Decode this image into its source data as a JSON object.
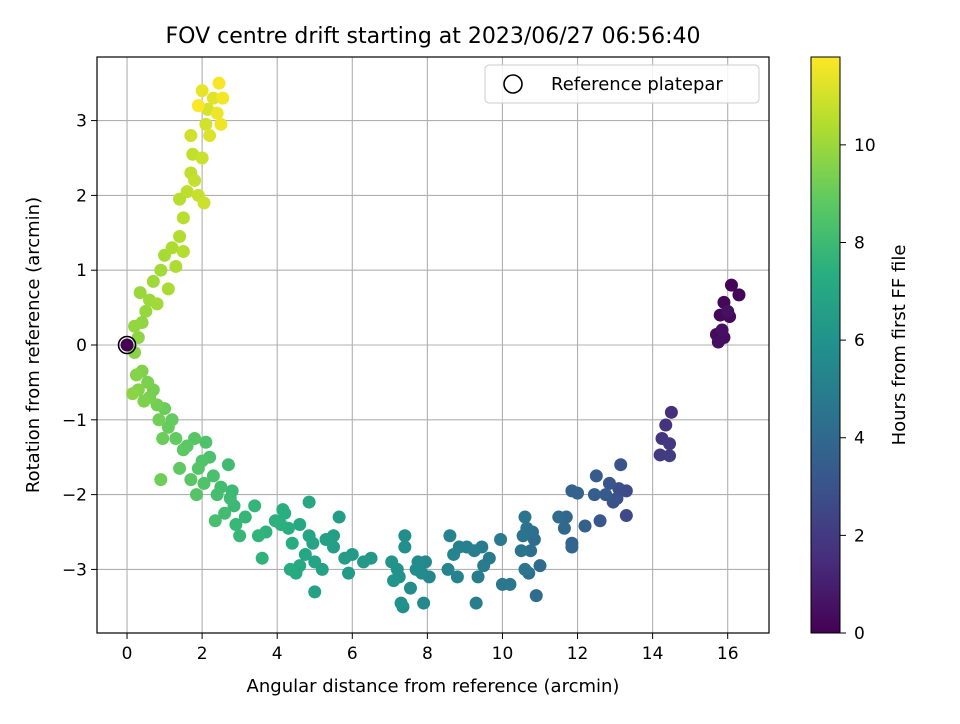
{
  "chart_data": {
    "type": "scatter",
    "title": "FOV centre drift starting at 2023/06/27 06:56:40",
    "xlabel": "Angular distance from reference (arcmin)",
    "ylabel": "Rotation from reference (arcmin)",
    "xlim": [
      -0.8,
      17.1
    ],
    "ylim": [
      -3.85,
      3.85
    ],
    "x_ticks": [
      0,
      2,
      4,
      6,
      8,
      10,
      12,
      14,
      16
    ],
    "y_ticks": [
      -3,
      -2,
      -1,
      0,
      1,
      2,
      3
    ],
    "x_tick_labels": [
      "0",
      "2",
      "4",
      "6",
      "8",
      "10",
      "12",
      "14",
      "16"
    ],
    "y_tick_labels": [
      "−3",
      "−2",
      "−1",
      "0",
      "1",
      "2",
      "3"
    ],
    "grid": true,
    "legend": {
      "location": "upper-right",
      "entries": [
        "Reference platepar"
      ]
    },
    "colorbar": {
      "label": "Hours from first FF file",
      "colormap": "viridis",
      "range": [
        0,
        11.8
      ],
      "ticks": [
        0,
        2,
        4,
        6,
        8,
        10
      ],
      "tick_labels": [
        "0",
        "2",
        "4",
        "6",
        "8",
        "10"
      ]
    },
    "reference_point": {
      "x": 0,
      "y": 0,
      "label": "Reference platepar"
    },
    "points_note_keys": [
      "x",
      "y",
      "hours"
    ],
    "points": [
      [
        16.1,
        0.8,
        0.1
      ],
      [
        16.3,
        0.67,
        0.15
      ],
      [
        15.9,
        0.57,
        0.2
      ],
      [
        15.8,
        0.4,
        0.25
      ],
      [
        16.05,
        0.38,
        0.3
      ],
      [
        15.7,
        0.14,
        0.35
      ],
      [
        15.9,
        0.1,
        0.4
      ],
      [
        15.75,
        0.04,
        0.45
      ],
      [
        15.85,
        0.2,
        0.5
      ],
      [
        16.0,
        0.45,
        0.55
      ],
      [
        14.5,
        -0.9,
        1.6
      ],
      [
        14.35,
        -1.07,
        1.7
      ],
      [
        14.25,
        -1.25,
        1.8
      ],
      [
        14.45,
        -1.32,
        1.9
      ],
      [
        14.2,
        -1.47,
        2.0
      ],
      [
        14.45,
        -1.48,
        2.1
      ],
      [
        13.3,
        -2.28,
        2.6
      ],
      [
        13.3,
        -1.95,
        2.7
      ],
      [
        13.1,
        -1.92,
        2.8
      ],
      [
        13.05,
        -2.05,
        2.9
      ],
      [
        13.15,
        -1.6,
        3.0
      ],
      [
        12.95,
        -2.1,
        3.05
      ],
      [
        12.85,
        -1.85,
        3.1
      ],
      [
        12.6,
        -2.35,
        3.2
      ],
      [
        12.75,
        -2.0,
        3.3
      ],
      [
        12.5,
        -1.75,
        3.4
      ],
      [
        12.45,
        -2.0,
        3.5
      ],
      [
        12.2,
        -2.42,
        3.6
      ],
      [
        12.0,
        -1.98,
        3.7
      ],
      [
        11.85,
        -1.95,
        3.75
      ],
      [
        11.85,
        -2.65,
        3.8
      ],
      [
        11.85,
        -2.7,
        3.85
      ],
      [
        11.7,
        -2.3,
        3.9
      ],
      [
        11.65,
        -2.45,
        4.0
      ],
      [
        11.5,
        -2.3,
        4.05
      ],
      [
        11.0,
        -2.95,
        4.1
      ],
      [
        10.9,
        -3.35,
        4.15
      ],
      [
        10.85,
        -2.6,
        4.2
      ],
      [
        10.8,
        -2.5,
        4.25
      ],
      [
        10.75,
        -2.75,
        4.3
      ],
      [
        10.7,
        -3.05,
        4.35
      ],
      [
        10.65,
        -2.45,
        4.4
      ],
      [
        10.55,
        -2.55,
        4.45
      ],
      [
        10.5,
        -2.75,
        4.5
      ],
      [
        10.6,
        -2.3,
        4.55
      ],
      [
        10.6,
        -3.0,
        4.6
      ],
      [
        10.2,
        -3.2,
        4.65
      ],
      [
        10.0,
        -3.2,
        4.7
      ],
      [
        9.95,
        -2.6,
        4.75
      ],
      [
        9.65,
        -2.85,
        4.8
      ],
      [
        9.5,
        -2.95,
        4.85
      ],
      [
        9.45,
        -2.7,
        4.9
      ],
      [
        9.35,
        -3.1,
        4.95
      ],
      [
        9.3,
        -3.45,
        5.0
      ],
      [
        9.25,
        -2.75,
        5.05
      ],
      [
        9.05,
        -2.7,
        5.1
      ],
      [
        8.85,
        -2.7,
        5.15
      ],
      [
        8.8,
        -3.1,
        5.2
      ],
      [
        8.6,
        -2.55,
        5.25
      ],
      [
        8.55,
        -3.0,
        5.3
      ],
      [
        8.7,
        -2.8,
        5.35
      ],
      [
        8.05,
        -3.1,
        5.4
      ],
      [
        7.95,
        -2.9,
        5.45
      ],
      [
        7.9,
        -3.45,
        5.5
      ],
      [
        7.85,
        -3.05,
        5.55
      ],
      [
        7.75,
        -2.9,
        5.6
      ],
      [
        7.7,
        -3.0,
        5.65
      ],
      [
        7.55,
        -3.25,
        5.7
      ],
      [
        7.4,
        -2.55,
        5.75
      ],
      [
        7.4,
        -2.7,
        5.8
      ],
      [
        7.35,
        -3.5,
        5.85
      ],
      [
        7.3,
        -3.45,
        5.9
      ],
      [
        7.25,
        -3.1,
        5.95
      ],
      [
        7.2,
        -3.0,
        6.0
      ],
      [
        7.05,
        -2.9,
        6.05
      ],
      [
        7.1,
        -3.15,
        6.1
      ],
      [
        6.5,
        -2.85,
        6.25
      ],
      [
        6.3,
        -2.9,
        6.3
      ],
      [
        6.0,
        -2.8,
        6.35
      ],
      [
        5.9,
        -3.05,
        6.4
      ],
      [
        5.8,
        -2.85,
        6.45
      ],
      [
        5.65,
        -2.3,
        6.5
      ],
      [
        5.5,
        -2.7,
        6.55
      ],
      [
        5.5,
        -2.55,
        6.6
      ],
      [
        5.3,
        -2.6,
        6.65
      ],
      [
        5.2,
        -3.0,
        6.7
      ],
      [
        5.0,
        -3.3,
        6.75
      ],
      [
        5.0,
        -2.9,
        6.8
      ],
      [
        4.95,
        -2.65,
        6.85
      ],
      [
        4.85,
        -2.55,
        6.9
      ],
      [
        4.85,
        -2.1,
        6.95
      ],
      [
        4.75,
        -2.8,
        7.0
      ],
      [
        4.6,
        -2.4,
        7.05
      ],
      [
        4.6,
        -2.95,
        7.1
      ],
      [
        4.5,
        -3.05,
        7.15
      ],
      [
        4.4,
        -2.65,
        7.2
      ],
      [
        4.35,
        -3.0,
        7.25
      ],
      [
        4.3,
        -2.45,
        7.3
      ],
      [
        4.2,
        -2.25,
        7.35
      ],
      [
        4.15,
        -2.2,
        7.4
      ],
      [
        4.1,
        -2.4,
        7.45
      ],
      [
        3.95,
        -2.35,
        7.5
      ],
      [
        3.7,
        -2.5,
        7.55
      ],
      [
        3.6,
        -2.85,
        7.6
      ],
      [
        3.5,
        -2.55,
        7.65
      ],
      [
        3.4,
        -2.15,
        7.7
      ],
      [
        3.15,
        -2.3,
        7.75
      ],
      [
        3.0,
        -2.55,
        7.8
      ],
      [
        2.9,
        -2.4,
        7.85
      ],
      [
        2.85,
        -2.15,
        7.9
      ],
      [
        2.8,
        -1.95,
        7.95
      ],
      [
        2.75,
        -2.05,
        8.0
      ],
      [
        2.7,
        -1.6,
        8.05
      ],
      [
        2.6,
        -2.25,
        8.1
      ],
      [
        2.5,
        -1.9,
        8.15
      ],
      [
        2.4,
        -2.0,
        8.2
      ],
      [
        2.35,
        -2.35,
        8.25
      ],
      [
        2.3,
        -1.75,
        8.3
      ],
      [
        2.2,
        -1.5,
        8.35
      ],
      [
        2.1,
        -1.3,
        8.4
      ],
      [
        2.05,
        -1.85,
        8.45
      ],
      [
        2.0,
        -1.55,
        8.5
      ],
      [
        1.9,
        -1.65,
        8.55
      ],
      [
        1.85,
        -2.0,
        8.6
      ],
      [
        1.8,
        -1.25,
        8.65
      ],
      [
        1.7,
        -1.8,
        8.7
      ],
      [
        1.6,
        -1.35,
        8.75
      ],
      [
        1.5,
        -1.4,
        8.8
      ],
      [
        1.4,
        -1.65,
        8.85
      ],
      [
        1.3,
        -1.25,
        8.9
      ],
      [
        1.2,
        -1.0,
        8.95
      ],
      [
        1.1,
        -1.1,
        9.0
      ],
      [
        1.0,
        -0.85,
        9.05
      ],
      [
        0.95,
        -1.25,
        9.1
      ],
      [
        0.9,
        -1.8,
        9.15
      ],
      [
        0.85,
        -1.0,
        9.2
      ],
      [
        0.8,
        -0.8,
        9.25
      ],
      [
        0.7,
        -0.6,
        9.3
      ],
      [
        0.6,
        -0.7,
        9.35
      ],
      [
        0.55,
        -0.5,
        9.4
      ],
      [
        0.45,
        -0.75,
        9.45
      ],
      [
        0.4,
        -0.35,
        9.5
      ],
      [
        0.3,
        -0.6,
        9.55
      ],
      [
        0.25,
        -0.4,
        9.6
      ],
      [
        0.2,
        -0.1,
        9.65
      ],
      [
        0.15,
        -0.65,
        9.7
      ],
      [
        0.3,
        0.1,
        9.75
      ],
      [
        0.4,
        0.3,
        9.8
      ],
      [
        0.2,
        0.25,
        9.85
      ],
      [
        0.5,
        0.45,
        9.9
      ],
      [
        0.35,
        0.7,
        9.95
      ],
      [
        0.6,
        0.6,
        10.0
      ],
      [
        0.7,
        0.85,
        10.05
      ],
      [
        0.8,
        0.55,
        10.1
      ],
      [
        0.9,
        1.0,
        10.15
      ],
      [
        1.0,
        1.2,
        10.2
      ],
      [
        1.1,
        0.75,
        10.25
      ],
      [
        1.2,
        1.3,
        10.3
      ],
      [
        1.3,
        1.05,
        10.35
      ],
      [
        1.4,
        1.45,
        10.4
      ],
      [
        1.5,
        1.25,
        10.45
      ],
      [
        1.4,
        1.95,
        10.5
      ],
      [
        1.5,
        1.7,
        10.55
      ],
      [
        1.6,
        2.05,
        10.6
      ],
      [
        1.7,
        2.3,
        10.65
      ],
      [
        1.75,
        2.55,
        10.7
      ],
      [
        1.8,
        2.2,
        10.75
      ],
      [
        1.9,
        2.0,
        10.8
      ],
      [
        2.0,
        2.5,
        10.85
      ],
      [
        2.05,
        1.9,
        10.9
      ],
      [
        1.7,
        2.8,
        10.95
      ],
      [
        2.1,
        2.95,
        11.0
      ],
      [
        2.15,
        3.15,
        11.1
      ],
      [
        2.2,
        2.8,
        11.2
      ],
      [
        2.3,
        3.3,
        11.3
      ],
      [
        2.0,
        3.4,
        11.4
      ],
      [
        2.4,
        3.1,
        11.5
      ],
      [
        2.5,
        2.95,
        11.55
      ],
      [
        2.55,
        3.3,
        11.6
      ],
      [
        2.45,
        3.5,
        11.7
      ],
      [
        1.9,
        3.2,
        11.75
      ]
    ]
  }
}
